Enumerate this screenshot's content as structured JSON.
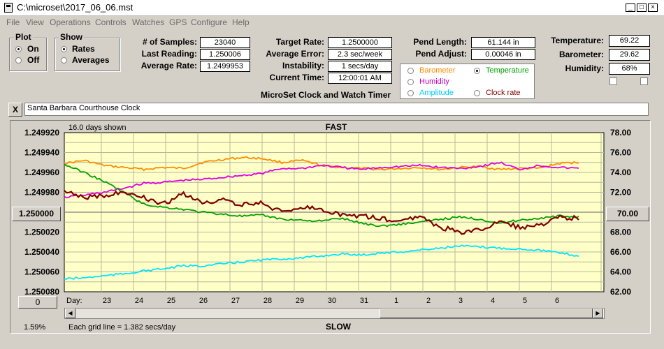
{
  "window": {
    "title": "C:\\microset\\2017_06_06.mst"
  },
  "menu": [
    "File",
    "View",
    "Operations",
    "Controls",
    "Watches",
    "GPS",
    "Configure",
    "Help"
  ],
  "plot_group": {
    "label": "Plot",
    "options": [
      {
        "label": "On",
        "selected": true
      },
      {
        "label": "Off",
        "selected": false
      }
    ]
  },
  "show_group": {
    "label": "Show",
    "options": [
      {
        "label": "Rates",
        "selected": true
      },
      {
        "label": "Averages",
        "selected": false
      }
    ]
  },
  "stats": {
    "samples_label": "# of Samples:",
    "samples": "23040",
    "last_label": "Last Reading:",
    "last": "1.250006",
    "avg_label": "Average Rate:",
    "avg": "1.2499953",
    "target_label": "Target Rate:",
    "target": "1.2500000",
    "error_label": "Average Error:",
    "error": "2.3 sec/week",
    "instab_label": "Instability:",
    "instab": "1 secs/day",
    "time_label": "Current Time:",
    "time": "12:00:01 AM",
    "pendlen_label": "Pend Length:",
    "pendlen": "61.144 in",
    "pendadj_label": "Pend Adjust:",
    "pendadj": "0.00046 in",
    "temp_label": "Temperature:",
    "temp": "69.22",
    "baro_label": "Barometer:",
    "baro": "29.62",
    "hum_label": "Humidity:",
    "hum": "68%"
  },
  "app_caption": "MicroSet Clock and Watch Timer",
  "aux_options": [
    {
      "label": "Barometer",
      "color": "#ff8c00",
      "selected": false
    },
    {
      "label": "Temperature",
      "color": "#00a000",
      "selected": true
    },
    {
      "label": "Humidity",
      "color": "#c000c0",
      "selected": false
    },
    {
      "label": "Amplitude",
      "color": "#00c8ff",
      "selected": false
    },
    {
      "label": "Clock rate",
      "color": "#800000",
      "selected": false
    }
  ],
  "clock_name": "Santa Barbara Courthouse Clock",
  "close_btn": "X",
  "plot": {
    "days_shown": "16.0 days shown",
    "top_label": "FAST",
    "bottom_label": "SLOW",
    "grid_note": "Each grid line = 1.382 secs/day",
    "percent": "1.59%",
    "day_prefix": "Day:",
    "center_left": "1.250000",
    "center_right": "70.00",
    "zero_btn": "0"
  },
  "chart_data": {
    "type": "line",
    "x_ticks": [
      "23",
      "24",
      "25",
      "26",
      "27",
      "28",
      "29",
      "30",
      "31",
      "1",
      "2",
      "3",
      "4",
      "5",
      "6"
    ],
    "y_left_ticks": [
      "1.249920",
      "1.249940",
      "1.249960",
      "1.249980",
      "1.250020",
      "1.250040",
      "1.250060",
      "1.250080"
    ],
    "y_right_ticks": [
      "78.00",
      "76.00",
      "74.00",
      "72.00",
      "68.00",
      "66.00",
      "64.00",
      "62.00"
    ],
    "y_left_range": [
      1.24992,
      1.25008
    ],
    "y_right_range": [
      62,
      78
    ],
    "series": [
      {
        "color": "#ff8c00",
        "values": [
          74.9,
          75.2,
          74.7,
          74.5,
          74.3,
          74.5,
          74.4,
          75.0,
          75.3,
          75.5,
          75.4,
          75.0,
          75.2,
          74.7,
          74.5,
          74.4,
          74.3,
          74.4,
          74.5,
          74.3,
          74.5,
          74.6,
          74.3,
          74.4,
          74.4,
          74.9,
          75.0
        ]
      },
      {
        "color": "#e000e0",
        "values": [
          71.5,
          71.7,
          72.0,
          72.4,
          72.9,
          73.0,
          73.2,
          73.3,
          73.5,
          73.7,
          73.9,
          74.4,
          74.4,
          74.7,
          74.5,
          74.3,
          74.5,
          74.6,
          74.7,
          74.5,
          74.4,
          74.6,
          75.0,
          74.3,
          74.7,
          74.5,
          74.4
        ]
      },
      {
        "color": "#00a000",
        "values": [
          74.8,
          74.0,
          73.1,
          72.0,
          70.8,
          70.5,
          70.3,
          70.0,
          69.8,
          69.6,
          69.7,
          69.3,
          69.2,
          69.1,
          69.4,
          68.9,
          68.6,
          68.8,
          69.0,
          69.3,
          69.5,
          69.3,
          68.9,
          69.2,
          69.4,
          69.6,
          69.5
        ]
      },
      {
        "color": "#00e5ff",
        "values": [
          63.3,
          63.4,
          63.6,
          63.8,
          64.1,
          64.3,
          64.6,
          64.6,
          64.8,
          65.0,
          65.2,
          65.3,
          65.4,
          65.6,
          65.8,
          65.7,
          65.9,
          66.0,
          66.2,
          66.4,
          66.6,
          66.5,
          66.4,
          66.3,
          66.2,
          65.9,
          65.6
        ]
      }
    ],
    "clock_rate": {
      "color": "#800000",
      "values": [
        1.24998,
        1.249985,
        1.249983,
        1.249979,
        1.249985,
        1.249992,
        1.249982,
        1.24999,
        1.249988,
        1.249992,
        1.249991,
        1.25,
        1.249995,
        1.249998,
        1.250002,
        1.250004,
        1.250006,
        1.25001,
        1.250004,
        1.250015,
        1.25002,
        1.250018,
        1.25001,
        1.250015,
        1.250014,
        1.250005,
        1.250006
      ]
    }
  }
}
